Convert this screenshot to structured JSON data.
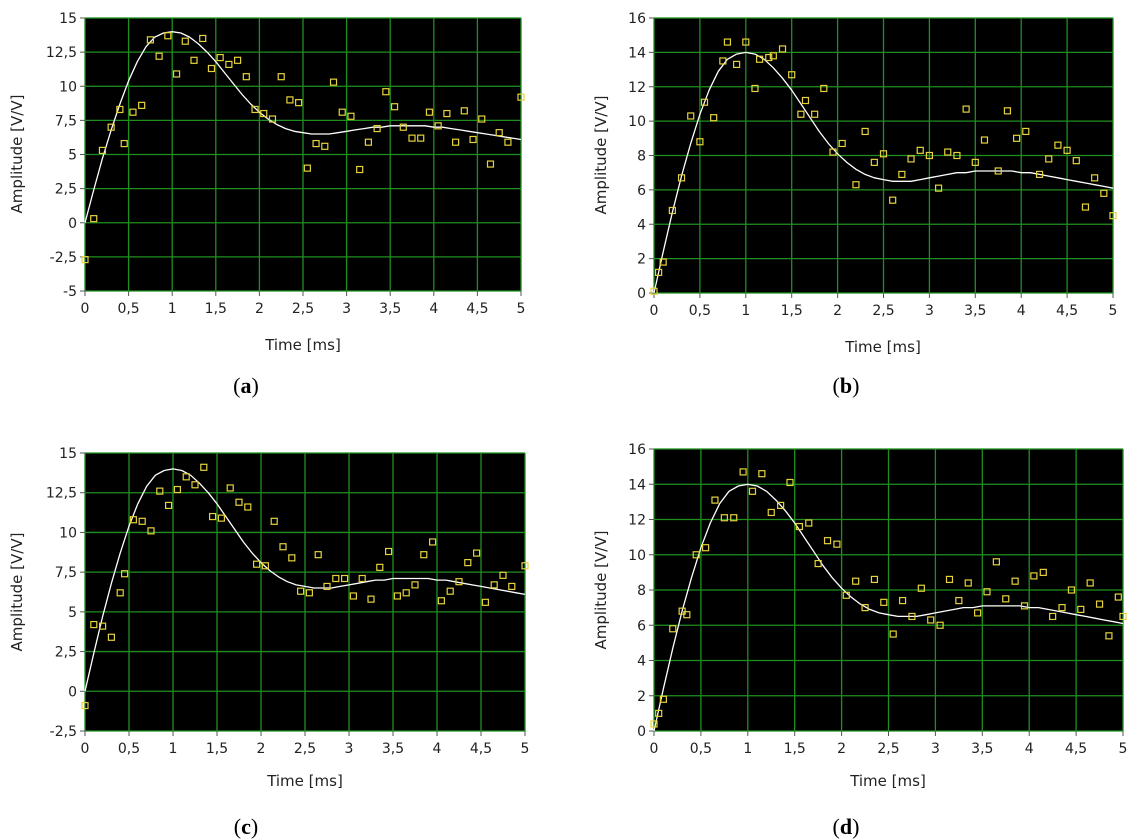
{
  "chart_data": [
    {
      "type": "scatter",
      "panel": "a",
      "xlabel": "Time [ms]",
      "ylabel": "Amplitude [V/V]",
      "xlim": [
        0,
        5
      ],
      "ylim": [
        -5,
        15
      ],
      "xticks": [
        0,
        0.5,
        1,
        1.5,
        2,
        2.5,
        3,
        3.5,
        4,
        4.5,
        5
      ],
      "xtick_labels": [
        "0",
        "0,5",
        "1",
        "1,5",
        "2",
        "2,5",
        "3",
        "3,5",
        "4",
        "4,5",
        "5"
      ],
      "yticks": [
        -5,
        -2.5,
        0,
        2.5,
        5,
        7.5,
        10,
        12.5,
        15
      ],
      "ytick_labels": [
        "-5",
        "-2,5",
        "0",
        "2,5",
        "5",
        "7,5",
        "10",
        "12,5",
        "15"
      ],
      "grid": true,
      "colors": {
        "background": "#000000",
        "grid": "#1f8f1f",
        "points": "#e6d23c",
        "curve": "#ffffff"
      },
      "series": [
        {
          "style": "line",
          "x": [
            0,
            0.1,
            0.2,
            0.3,
            0.4,
            0.5,
            0.6,
            0.7,
            0.8,
            0.9,
            1.0,
            1.1,
            1.2,
            1.3,
            1.4,
            1.5,
            1.6,
            1.7,
            1.8,
            1.9,
            2.0,
            2.1,
            2.2,
            2.3,
            2.4,
            2.5,
            2.6,
            2.7,
            2.8,
            2.9,
            3.0,
            3.1,
            3.2,
            3.3,
            3.4,
            3.5,
            3.6,
            3.7,
            3.8,
            3.9,
            4.0,
            4.1,
            4.2,
            4.3,
            4.4,
            4.5,
            4.6,
            4.7,
            4.8,
            4.9,
            5.0
          ],
          "y": [
            0,
            2.4,
            4.7,
            6.8,
            8.7,
            10.4,
            11.8,
            12.9,
            13.6,
            13.9,
            14.0,
            13.9,
            13.6,
            13.1,
            12.5,
            11.8,
            11.0,
            10.2,
            9.4,
            8.7,
            8.1,
            7.6,
            7.2,
            6.9,
            6.7,
            6.6,
            6.5,
            6.5,
            6.5,
            6.6,
            6.7,
            6.8,
            6.9,
            7.0,
            7.0,
            7.1,
            7.1,
            7.1,
            7.1,
            7.1,
            7.0,
            7.0,
            6.9,
            6.8,
            6.7,
            6.6,
            6.5,
            6.4,
            6.3,
            6.2,
            6.1
          ]
        },
        {
          "style": "points",
          "x": [
            0,
            0.1,
            0.2,
            0.3,
            0.4,
            0.45,
            0.55,
            0.65,
            0.75,
            0.85,
            0.95,
            1.05,
            1.15,
            1.25,
            1.35,
            1.45,
            1.55,
            1.65,
            1.75,
            1.85,
            1.95,
            2.05,
            2.15,
            2.25,
            2.35,
            2.45,
            2.55,
            2.65,
            2.75,
            2.85,
            2.95,
            3.05,
            3.15,
            3.25,
            3.35,
            3.45,
            3.55,
            3.65,
            3.75,
            3.85,
            3.95,
            4.05,
            4.15,
            4.25,
            4.35,
            4.45,
            4.55,
            4.65,
            4.75,
            4.85,
            5.0
          ],
          "y": [
            -2.7,
            0.3,
            5.3,
            7.0,
            8.3,
            5.8,
            8.1,
            8.6,
            13.4,
            12.2,
            13.7,
            10.9,
            13.3,
            11.9,
            13.5,
            11.3,
            12.1,
            11.6,
            11.9,
            10.7,
            8.3,
            8.0,
            7.6,
            10.7,
            9.0,
            8.8,
            4.0,
            5.8,
            5.6,
            10.3,
            8.1,
            7.8,
            3.9,
            5.9,
            6.9,
            9.6,
            8.5,
            7.0,
            6.2,
            6.2,
            8.1,
            7.1,
            8.0,
            5.9,
            8.2,
            6.1,
            7.6,
            4.3,
            6.6,
            5.9,
            9.2
          ]
        }
      ]
    },
    {
      "type": "scatter",
      "panel": "b",
      "xlabel": "Time [ms]",
      "ylabel": "Amplitude [V/V]",
      "xlim": [
        0,
        5
      ],
      "ylim": [
        0,
        16
      ],
      "xticks": [
        0,
        0.5,
        1,
        1.5,
        2,
        2.5,
        3,
        3.5,
        4,
        4.5,
        5
      ],
      "xtick_labels": [
        "0",
        "0,5",
        "1",
        "1,5",
        "2",
        "2,5",
        "3",
        "3,5",
        "4",
        "4,5",
        "5"
      ],
      "yticks": [
        0,
        2,
        4,
        6,
        8,
        10,
        12,
        14,
        16
      ],
      "ytick_labels": [
        "0",
        "2",
        "4",
        "6",
        "8",
        "10",
        "12",
        "14",
        "16"
      ],
      "grid": true,
      "colors": {
        "background": "#000000",
        "grid": "#1f8f1f",
        "points": "#e6d23c",
        "curve": "#ffffff"
      },
      "series": [
        {
          "style": "line",
          "x": [
            0,
            0.1,
            0.2,
            0.3,
            0.4,
            0.5,
            0.6,
            0.7,
            0.8,
            0.9,
            1.0,
            1.1,
            1.2,
            1.3,
            1.4,
            1.5,
            1.6,
            1.7,
            1.8,
            1.9,
            2.0,
            2.1,
            2.2,
            2.3,
            2.4,
            2.5,
            2.6,
            2.7,
            2.8,
            2.9,
            3.0,
            3.1,
            3.2,
            3.3,
            3.4,
            3.5,
            3.6,
            3.7,
            3.8,
            3.9,
            4.0,
            4.1,
            4.2,
            4.3,
            4.4,
            4.5,
            4.6,
            4.7,
            4.8,
            4.9,
            5.0
          ],
          "y": [
            0,
            2.4,
            4.7,
            6.8,
            8.7,
            10.4,
            11.8,
            12.9,
            13.6,
            13.9,
            14.0,
            13.9,
            13.6,
            13.1,
            12.5,
            11.8,
            11.0,
            10.2,
            9.4,
            8.7,
            8.1,
            7.6,
            7.2,
            6.9,
            6.7,
            6.6,
            6.5,
            6.5,
            6.5,
            6.6,
            6.7,
            6.8,
            6.9,
            7.0,
            7.0,
            7.1,
            7.1,
            7.1,
            7.1,
            7.1,
            7.0,
            7.0,
            6.9,
            6.8,
            6.7,
            6.6,
            6.5,
            6.4,
            6.3,
            6.2,
            6.1
          ]
        },
        {
          "style": "points",
          "x": [
            0,
            0.05,
            0.1,
            0.2,
            0.3,
            0.4,
            0.5,
            0.55,
            0.65,
            0.75,
            0.8,
            0.9,
            1.0,
            1.1,
            1.15,
            1.25,
            1.3,
            1.4,
            1.5,
            1.6,
            1.65,
            1.75,
            1.85,
            1.95,
            2.05,
            2.2,
            2.3,
            2.4,
            2.5,
            2.6,
            2.7,
            2.8,
            2.9,
            3.0,
            3.1,
            3.2,
            3.3,
            3.4,
            3.5,
            3.6,
            3.75,
            3.85,
            3.95,
            4.05,
            4.2,
            4.3,
            4.4,
            4.5,
            4.6,
            4.7,
            4.8,
            4.9,
            5.0
          ],
          "y": [
            0.1,
            1.2,
            1.8,
            4.8,
            6.7,
            10.3,
            8.8,
            11.1,
            10.2,
            13.5,
            14.6,
            13.3,
            14.6,
            11.9,
            13.6,
            13.7,
            13.8,
            14.2,
            12.7,
            10.4,
            11.2,
            10.4,
            11.9,
            8.2,
            8.7,
            6.3,
            9.4,
            7.6,
            8.1,
            5.4,
            6.9,
            7.8,
            8.3,
            8.0,
            6.1,
            8.2,
            8.0,
            10.7,
            7.6,
            8.9,
            7.1,
            10.6,
            9.0,
            9.4,
            6.9,
            7.8,
            8.6,
            8.3,
            7.7,
            5.0,
            6.7,
            5.8,
            4.5
          ]
        }
      ]
    },
    {
      "type": "scatter",
      "panel": "c",
      "xlabel": "Time [ms]",
      "ylabel": "Amplitude [V/V]",
      "xlim": [
        0,
        5
      ],
      "ylim": [
        -2.5,
        15
      ],
      "xticks": [
        0,
        0.5,
        1,
        1.5,
        2,
        2.5,
        3,
        3.5,
        4,
        4.5,
        5
      ],
      "xtick_labels": [
        "0",
        "0,5",
        "1",
        "1,5",
        "2",
        "2,5",
        "3",
        "3,5",
        "4",
        "4,5",
        "5"
      ],
      "yticks": [
        -2.5,
        0,
        2.5,
        5,
        7.5,
        10,
        12.5,
        15
      ],
      "ytick_labels": [
        "-2,5",
        "0",
        "2,5",
        "5",
        "7,5",
        "10",
        "12,5",
        "15"
      ],
      "grid": true,
      "colors": {
        "background": "#000000",
        "grid": "#1f8f1f",
        "points": "#e6d23c",
        "curve": "#ffffff"
      },
      "series": [
        {
          "style": "line",
          "x": [
            0,
            0.1,
            0.2,
            0.3,
            0.4,
            0.5,
            0.6,
            0.7,
            0.8,
            0.9,
            1.0,
            1.1,
            1.2,
            1.3,
            1.4,
            1.5,
            1.6,
            1.7,
            1.8,
            1.9,
            2.0,
            2.1,
            2.2,
            2.3,
            2.4,
            2.5,
            2.6,
            2.7,
            2.8,
            2.9,
            3.0,
            3.1,
            3.2,
            3.3,
            3.4,
            3.5,
            3.6,
            3.7,
            3.8,
            3.9,
            4.0,
            4.1,
            4.2,
            4.3,
            4.4,
            4.5,
            4.6,
            4.7,
            4.8,
            4.9,
            5.0
          ],
          "y": [
            0,
            2.4,
            4.7,
            6.8,
            8.7,
            10.4,
            11.8,
            12.9,
            13.6,
            13.9,
            14.0,
            13.9,
            13.6,
            13.1,
            12.5,
            11.8,
            11.0,
            10.2,
            9.4,
            8.7,
            8.1,
            7.6,
            7.2,
            6.9,
            6.7,
            6.6,
            6.5,
            6.5,
            6.5,
            6.6,
            6.7,
            6.8,
            6.9,
            7.0,
            7.0,
            7.1,
            7.1,
            7.1,
            7.1,
            7.1,
            7.0,
            7.0,
            6.9,
            6.8,
            6.7,
            6.6,
            6.5,
            6.4,
            6.3,
            6.2,
            6.1
          ]
        },
        {
          "style": "points",
          "x": [
            0,
            0.1,
            0.2,
            0.3,
            0.4,
            0.45,
            0.55,
            0.65,
            0.75,
            0.85,
            0.95,
            1.05,
            1.15,
            1.25,
            1.35,
            1.45,
            1.55,
            1.65,
            1.75,
            1.85,
            1.95,
            2.05,
            2.15,
            2.25,
            2.35,
            2.45,
            2.55,
            2.65,
            2.75,
            2.85,
            2.95,
            3.05,
            3.15,
            3.25,
            3.35,
            3.45,
            3.55,
            3.65,
            3.75,
            3.85,
            3.95,
            4.05,
            4.15,
            4.25,
            4.35,
            4.45,
            4.55,
            4.65,
            4.75,
            4.85,
            5.0
          ],
          "y": [
            -0.9,
            4.2,
            4.1,
            3.4,
            6.2,
            7.4,
            10.8,
            10.7,
            10.1,
            12.6,
            11.7,
            12.7,
            13.5,
            13.0,
            14.1,
            11.0,
            10.9,
            12.8,
            11.9,
            11.6,
            8.0,
            7.9,
            10.7,
            9.1,
            8.4,
            6.3,
            6.2,
            8.6,
            6.6,
            7.1,
            7.1,
            6.0,
            7.1,
            5.8,
            7.8,
            8.8,
            6.0,
            6.2,
            6.7,
            8.6,
            9.4,
            5.7,
            6.3,
            6.9,
            8.1,
            8.7,
            5.6,
            6.7,
            7.3,
            6.6,
            7.9
          ]
        }
      ]
    },
    {
      "type": "scatter",
      "panel": "d",
      "xlabel": "Time [ms]",
      "ylabel": "Amplitude [V/V]",
      "xlim": [
        0,
        5
      ],
      "ylim": [
        0,
        16
      ],
      "xticks": [
        0,
        0.5,
        1,
        1.5,
        2,
        2.5,
        3,
        3.5,
        4,
        4.5,
        5
      ],
      "xtick_labels": [
        "0",
        "0,5",
        "1",
        "1,5",
        "2",
        "2,5",
        "3",
        "3,5",
        "4",
        "4,5",
        "5"
      ],
      "yticks": [
        0,
        2,
        4,
        6,
        8,
        10,
        12,
        14,
        16
      ],
      "ytick_labels": [
        "0",
        "2",
        "4",
        "6",
        "8",
        "10",
        "12",
        "14",
        "16"
      ],
      "grid": true,
      "colors": {
        "background": "#000000",
        "grid": "#1f8f1f",
        "points": "#e6d23c",
        "curve": "#ffffff"
      },
      "series": [
        {
          "style": "line",
          "x": [
            0,
            0.1,
            0.2,
            0.3,
            0.4,
            0.5,
            0.6,
            0.7,
            0.8,
            0.9,
            1.0,
            1.1,
            1.2,
            1.3,
            1.4,
            1.5,
            1.6,
            1.7,
            1.8,
            1.9,
            2.0,
            2.1,
            2.2,
            2.3,
            2.4,
            2.5,
            2.6,
            2.7,
            2.8,
            2.9,
            3.0,
            3.1,
            3.2,
            3.3,
            3.4,
            3.5,
            3.6,
            3.7,
            3.8,
            3.9,
            4.0,
            4.1,
            4.2,
            4.3,
            4.4,
            4.5,
            4.6,
            4.7,
            4.8,
            4.9,
            5.0
          ],
          "y": [
            0,
            2.4,
            4.7,
            6.8,
            8.7,
            10.4,
            11.8,
            12.9,
            13.6,
            13.9,
            14.0,
            13.9,
            13.6,
            13.1,
            12.5,
            11.8,
            11.0,
            10.2,
            9.4,
            8.7,
            8.1,
            7.6,
            7.2,
            6.9,
            6.7,
            6.6,
            6.5,
            6.5,
            6.5,
            6.6,
            6.7,
            6.8,
            6.9,
            7.0,
            7.0,
            7.1,
            7.1,
            7.1,
            7.1,
            7.1,
            7.0,
            7.0,
            6.9,
            6.8,
            6.7,
            6.6,
            6.5,
            6.4,
            6.3,
            6.2,
            6.1
          ]
        },
        {
          "style": "points",
          "x": [
            0,
            0.05,
            0.1,
            0.2,
            0.3,
            0.35,
            0.45,
            0.55,
            0.65,
            0.75,
            0.85,
            0.95,
            1.05,
            1.15,
            1.25,
            1.35,
            1.45,
            1.55,
            1.65,
            1.75,
            1.85,
            1.95,
            2.05,
            2.15,
            2.25,
            2.35,
            2.45,
            2.55,
            2.65,
            2.75,
            2.85,
            2.95,
            3.05,
            3.15,
            3.25,
            3.35,
            3.45,
            3.55,
            3.65,
            3.75,
            3.85,
            3.95,
            4.05,
            4.15,
            4.25,
            4.35,
            4.45,
            4.55,
            4.65,
            4.75,
            4.85,
            4.95,
            5.0
          ],
          "y": [
            0.4,
            1.0,
            1.8,
            5.8,
            6.8,
            6.6,
            10.0,
            10.4,
            13.1,
            12.1,
            12.1,
            14.7,
            13.6,
            14.6,
            12.4,
            12.8,
            14.1,
            11.6,
            11.8,
            9.5,
            10.8,
            10.6,
            7.7,
            8.5,
            7.0,
            8.6,
            7.3,
            5.5,
            7.4,
            6.5,
            8.1,
            6.3,
            6.0,
            8.6,
            7.4,
            8.4,
            6.7,
            7.9,
            9.6,
            7.5,
            8.5,
            7.1,
            8.8,
            9.0,
            6.5,
            7.0,
            8.0,
            6.9,
            8.4,
            7.2,
            5.4,
            7.6,
            6.5
          ]
        }
      ]
    }
  ],
  "captions": [
    {
      "open": "(",
      "letter": "a",
      "close": ")"
    },
    {
      "open": "(",
      "letter": "b",
      "close": ")"
    },
    {
      "open": "(",
      "letter": "c",
      "close": ")"
    },
    {
      "open": "(",
      "letter": "d",
      "close": ")"
    }
  ]
}
